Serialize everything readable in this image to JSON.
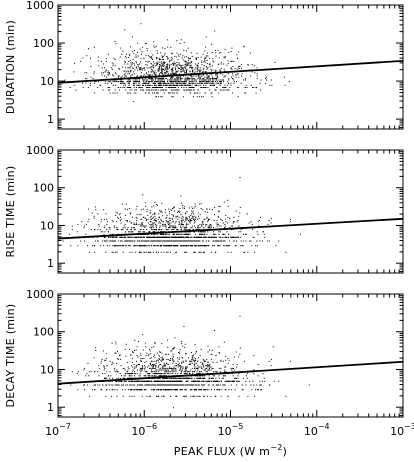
{
  "chart_data": [
    {
      "type": "scatter",
      "ylabel": "DURATION  (min)",
      "xscale": "log",
      "yscale": "log",
      "xlim": [
        1e-07,
        0.001
      ],
      "ylim": [
        0.55,
        1000
      ],
      "yticks": [
        {
          "base": "10",
          "exp": "0",
          "label": "1",
          "value": 1
        },
        {
          "base": "10",
          "exp": "",
          "label": "10",
          "value": 10
        },
        {
          "base": "10",
          "exp": "",
          "label": "100",
          "value": 100
        },
        {
          "base": "10",
          "exp": "",
          "label": "1000",
          "value": 1000
        }
      ],
      "fit_line": {
        "x": [
          1e-07,
          0.001
        ],
        "y": [
          9,
          34
        ]
      },
      "scatter": {
        "n": 1600,
        "median_x": 2e-06,
        "median_y": 12,
        "spread_y": 0.32,
        "floor_y": 4
      }
    },
    {
      "type": "scatter",
      "ylabel": "RISE TIME  (min)",
      "xscale": "log",
      "yscale": "log",
      "xlim": [
        1e-07,
        0.001
      ],
      "ylim": [
        0.55,
        1000
      ],
      "yticks": [
        {
          "label": "1",
          "value": 1
        },
        {
          "label": "10",
          "value": 10
        },
        {
          "label": "100",
          "value": 100
        },
        {
          "label": "1000",
          "value": 1000
        }
      ],
      "fit_line": {
        "x": [
          1e-07,
          0.001
        ],
        "y": [
          4.5,
          15
        ]
      },
      "scatter": {
        "n": 1600,
        "median_x": 2e-06,
        "median_y": 5.5,
        "spread_y": 0.3,
        "floor_y": 2
      }
    },
    {
      "type": "scatter",
      "ylabel": "DECAY TIME  (min)",
      "xlabel": "PEAK FLUX  (W m",
      "xlabel_sup": "−2",
      "xlabel_end": ")",
      "xscale": "log",
      "yscale": "log",
      "xlim": [
        1e-07,
        0.001
      ],
      "ylim": [
        0.55,
        1000
      ],
      "yticks": [
        {
          "label": "1",
          "value": 1
        },
        {
          "label": "10",
          "value": 10
        },
        {
          "label": "100",
          "value": 100
        },
        {
          "label": "1000",
          "value": 1000
        }
      ],
      "xticks": [
        {
          "base": "10",
          "exp": "−7",
          "value": 1e-07
        },
        {
          "base": "10",
          "exp": "−6",
          "value": 1e-06
        },
        {
          "base": "10",
          "exp": "−5",
          "value": 1e-05
        },
        {
          "base": "10",
          "exp": "−4",
          "value": 0.0001
        },
        {
          "base": "10",
          "exp": "−3",
          "value": 0.001
        }
      ],
      "fit_line": {
        "x": [
          1e-07,
          0.001
        ],
        "y": [
          4.2,
          16
        ]
      },
      "scatter": {
        "n": 1600,
        "median_x": 2e-06,
        "median_y": 6,
        "spread_y": 0.32,
        "floor_y": 2
      }
    }
  ]
}
